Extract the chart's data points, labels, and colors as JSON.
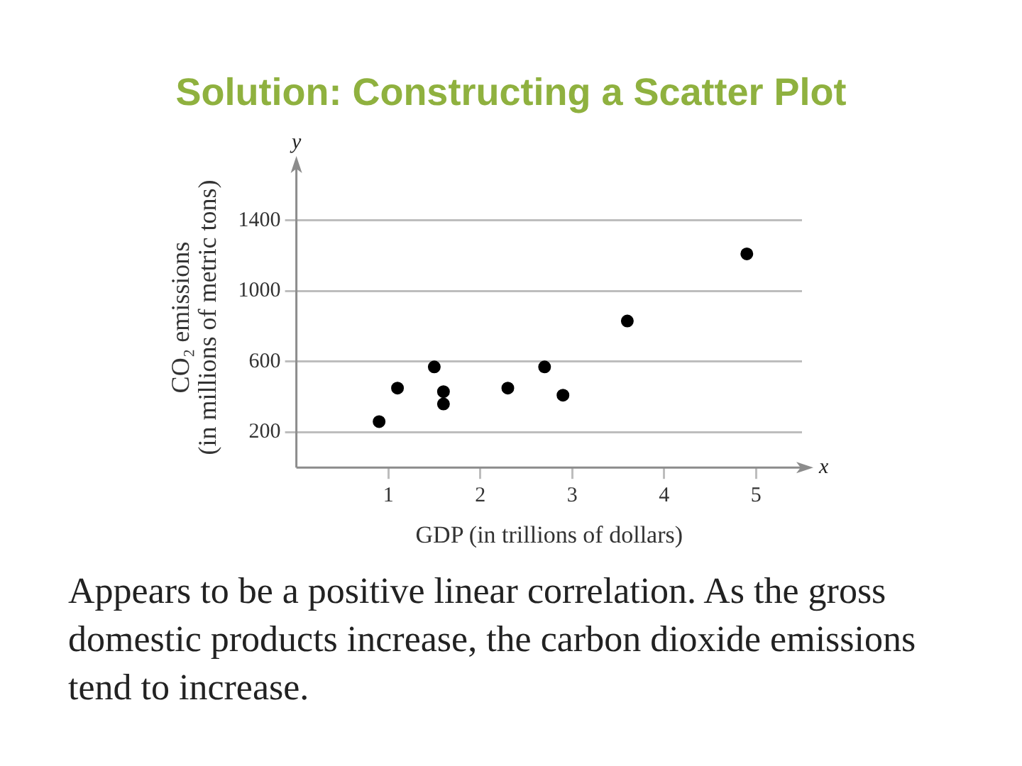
{
  "chart_data": {
    "type": "scatter",
    "title": "Solution: Constructing a Scatter Plot",
    "xlabel": "GDP (in trillions of dollars)",
    "ylabel": "CO₂ emissions\n(in millions of metric tons)",
    "x": [
      0.9,
      1.1,
      1.5,
      1.6,
      1.6,
      2.3,
      2.7,
      2.9,
      3.6,
      4.9
    ],
    "series": [
      {
        "color": "#000000",
        "values": [
          260,
          450,
          570,
          430,
          360,
          450,
          570,
          410,
          830,
          1210
        ]
      }
    ],
    "xlim": [
      0,
      5.5
    ],
    "xticks": [
      1,
      2,
      3,
      4,
      5
    ],
    "ylim": [
      0,
      1700
    ],
    "yticks": [
      200,
      600,
      1000,
      1400
    ],
    "grid": "y",
    "marker": "circle",
    "annotations": [
      "x",
      "y",
      "Appears to be a positive linear correlation. As the gross domestic products increase, the carbon dioxide emissions tend to increase."
    ]
  }
}
